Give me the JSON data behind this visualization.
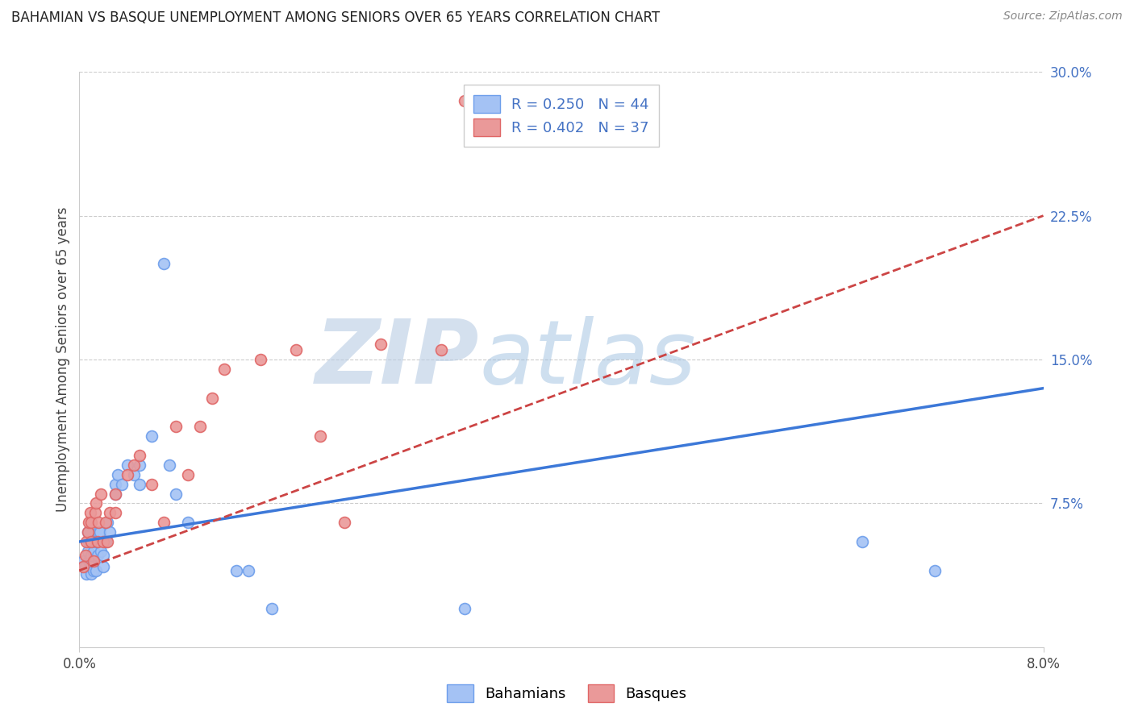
{
  "title": "BAHAMIAN VS BASQUE UNEMPLOYMENT AMONG SENIORS OVER 65 YEARS CORRELATION CHART",
  "source": "Source: ZipAtlas.com",
  "ylabel": "Unemployment Among Seniors over 65 years",
  "xmin": 0.0,
  "xmax": 0.08,
  "ymin": 0.0,
  "ymax": 0.3,
  "y_ticks_right": [
    0.0,
    0.075,
    0.15,
    0.225,
    0.3
  ],
  "y_tick_labels_right": [
    "",
    "7.5%",
    "15.0%",
    "22.5%",
    "30.0%"
  ],
  "blue_color": "#a4c2f4",
  "pink_color": "#ea9999",
  "blue_edge": "#6d9eeb",
  "pink_edge": "#e06666",
  "trend_blue": "#3c78d8",
  "trend_pink": "#cc4444",
  "watermark_zip": "#c9d9f0",
  "watermark_atlas": "#b0c8e8",
  "blue_x": [
    0.0003,
    0.0005,
    0.0006,
    0.0007,
    0.0007,
    0.0008,
    0.0008,
    0.0009,
    0.001,
    0.001,
    0.001,
    0.001,
    0.0012,
    0.0012,
    0.0013,
    0.0014,
    0.0015,
    0.0016,
    0.0017,
    0.0018,
    0.002,
    0.002,
    0.0022,
    0.0023,
    0.0025,
    0.003,
    0.003,
    0.0032,
    0.0035,
    0.004,
    0.0045,
    0.005,
    0.005,
    0.006,
    0.007,
    0.0075,
    0.008,
    0.009,
    0.013,
    0.014,
    0.016,
    0.032,
    0.065,
    0.071
  ],
  "blue_y": [
    0.045,
    0.042,
    0.038,
    0.05,
    0.06,
    0.045,
    0.055,
    0.045,
    0.038,
    0.042,
    0.048,
    0.055,
    0.04,
    0.05,
    0.055,
    0.04,
    0.048,
    0.06,
    0.06,
    0.05,
    0.042,
    0.048,
    0.055,
    0.065,
    0.06,
    0.08,
    0.085,
    0.09,
    0.085,
    0.095,
    0.09,
    0.085,
    0.095,
    0.11,
    0.2,
    0.095,
    0.08,
    0.065,
    0.04,
    0.04,
    0.02,
    0.02,
    0.055,
    0.04
  ],
  "pink_x": [
    0.0003,
    0.0005,
    0.0006,
    0.0007,
    0.0008,
    0.0009,
    0.001,
    0.001,
    0.0012,
    0.0013,
    0.0014,
    0.0015,
    0.0016,
    0.0018,
    0.002,
    0.0022,
    0.0023,
    0.0025,
    0.003,
    0.003,
    0.004,
    0.0045,
    0.005,
    0.006,
    0.007,
    0.008,
    0.009,
    0.01,
    0.011,
    0.012,
    0.015,
    0.018,
    0.02,
    0.022,
    0.025,
    0.03,
    0.032
  ],
  "pink_y": [
    0.042,
    0.048,
    0.055,
    0.06,
    0.065,
    0.07,
    0.055,
    0.065,
    0.045,
    0.07,
    0.075,
    0.055,
    0.065,
    0.08,
    0.055,
    0.065,
    0.055,
    0.07,
    0.07,
    0.08,
    0.09,
    0.095,
    0.1,
    0.085,
    0.065,
    0.115,
    0.09,
    0.115,
    0.13,
    0.145,
    0.15,
    0.155,
    0.11,
    0.065,
    0.158,
    0.155,
    0.285
  ],
  "legend_label1": "R = 0.250   N = 44",
  "legend_label2": "R = 0.402   N = 37",
  "label_bahamians": "Bahamians",
  "label_basques": "Basques",
  "grid_color": "#cccccc",
  "title_fontsize": 12,
  "tick_fontsize": 12,
  "label_fontsize": 12,
  "legend_fontsize": 13,
  "source_fontsize": 10
}
